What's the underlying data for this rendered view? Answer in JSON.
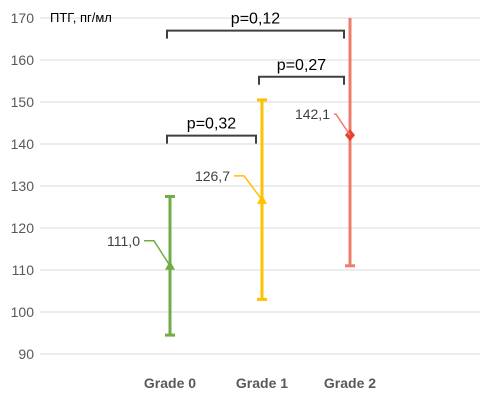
{
  "chart_data": {
    "type": "errorbar",
    "ylabel": "ПТГ, пг/мл",
    "ylim": [
      90,
      170
    ],
    "yticks": [
      90,
      100,
      110,
      120,
      130,
      140,
      150,
      160,
      170
    ],
    "ytick_labels": [
      "90",
      "100",
      "110",
      "120",
      "130",
      "140",
      "150",
      "160",
      "170"
    ],
    "grid": true,
    "categories": [
      "Grade 0",
      "Grade 1",
      "Grade 2"
    ],
    "points": [
      {
        "category": "Grade 0",
        "mean": 111.0,
        "low": 94.5,
        "high": 127.5,
        "label": "111,0",
        "color": "#70ad47",
        "marker": "triangle"
      },
      {
        "category": "Grade 1",
        "mean": 126.7,
        "low": 103.0,
        "high": 150.5,
        "label": "126,7",
        "color": "#ffc000",
        "marker": "triangle"
      },
      {
        "category": "Grade 2",
        "mean": 142.1,
        "low": 111.0,
        "high": 170.0,
        "label": "142,1",
        "color": "#ed7d6b",
        "marker": "diamond"
      }
    ],
    "comparisons": [
      {
        "from": "Grade 0",
        "to": "Grade 1",
        "label": "p=0,32",
        "level": 142
      },
      {
        "from": "Grade 1",
        "to": "Grade 2",
        "label": "p=0,27",
        "level": 156
      },
      {
        "from": "Grade 0",
        "to": "Grade 2",
        "label": "p=0,12",
        "level": 167
      }
    ]
  }
}
